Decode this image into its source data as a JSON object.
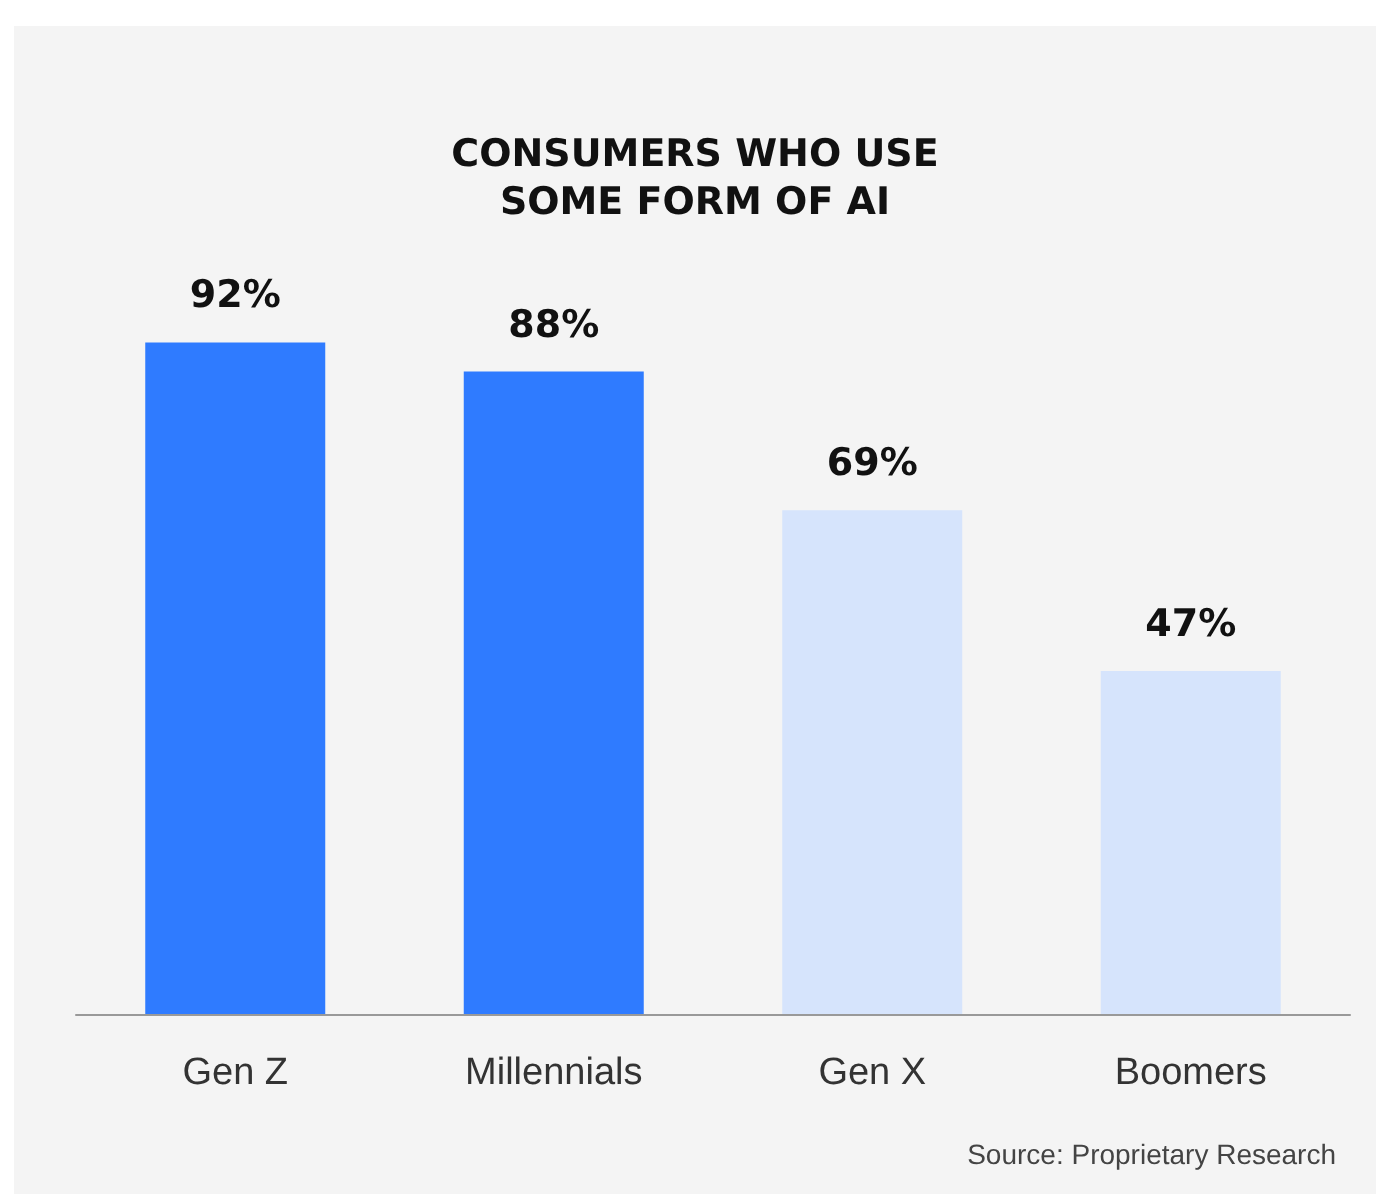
{
  "chart_data": {
    "type": "bar",
    "title": "CONSUMERS WHO USE\nSOME FORM OF AI",
    "categories": [
      "Gen Z",
      "Millennials",
      "Gen X",
      "Boomers"
    ],
    "values": [
      92,
      88,
      69,
      47
    ],
    "colors": [
      "#2f7bff",
      "#2f7bff",
      "#d6e4fc",
      "#d6e4fc"
    ],
    "value_labels": [
      "92%",
      "88%",
      "69%",
      "47%"
    ],
    "annotations": [
      "Source: Proprietary Research"
    ],
    "grid": false
  }
}
